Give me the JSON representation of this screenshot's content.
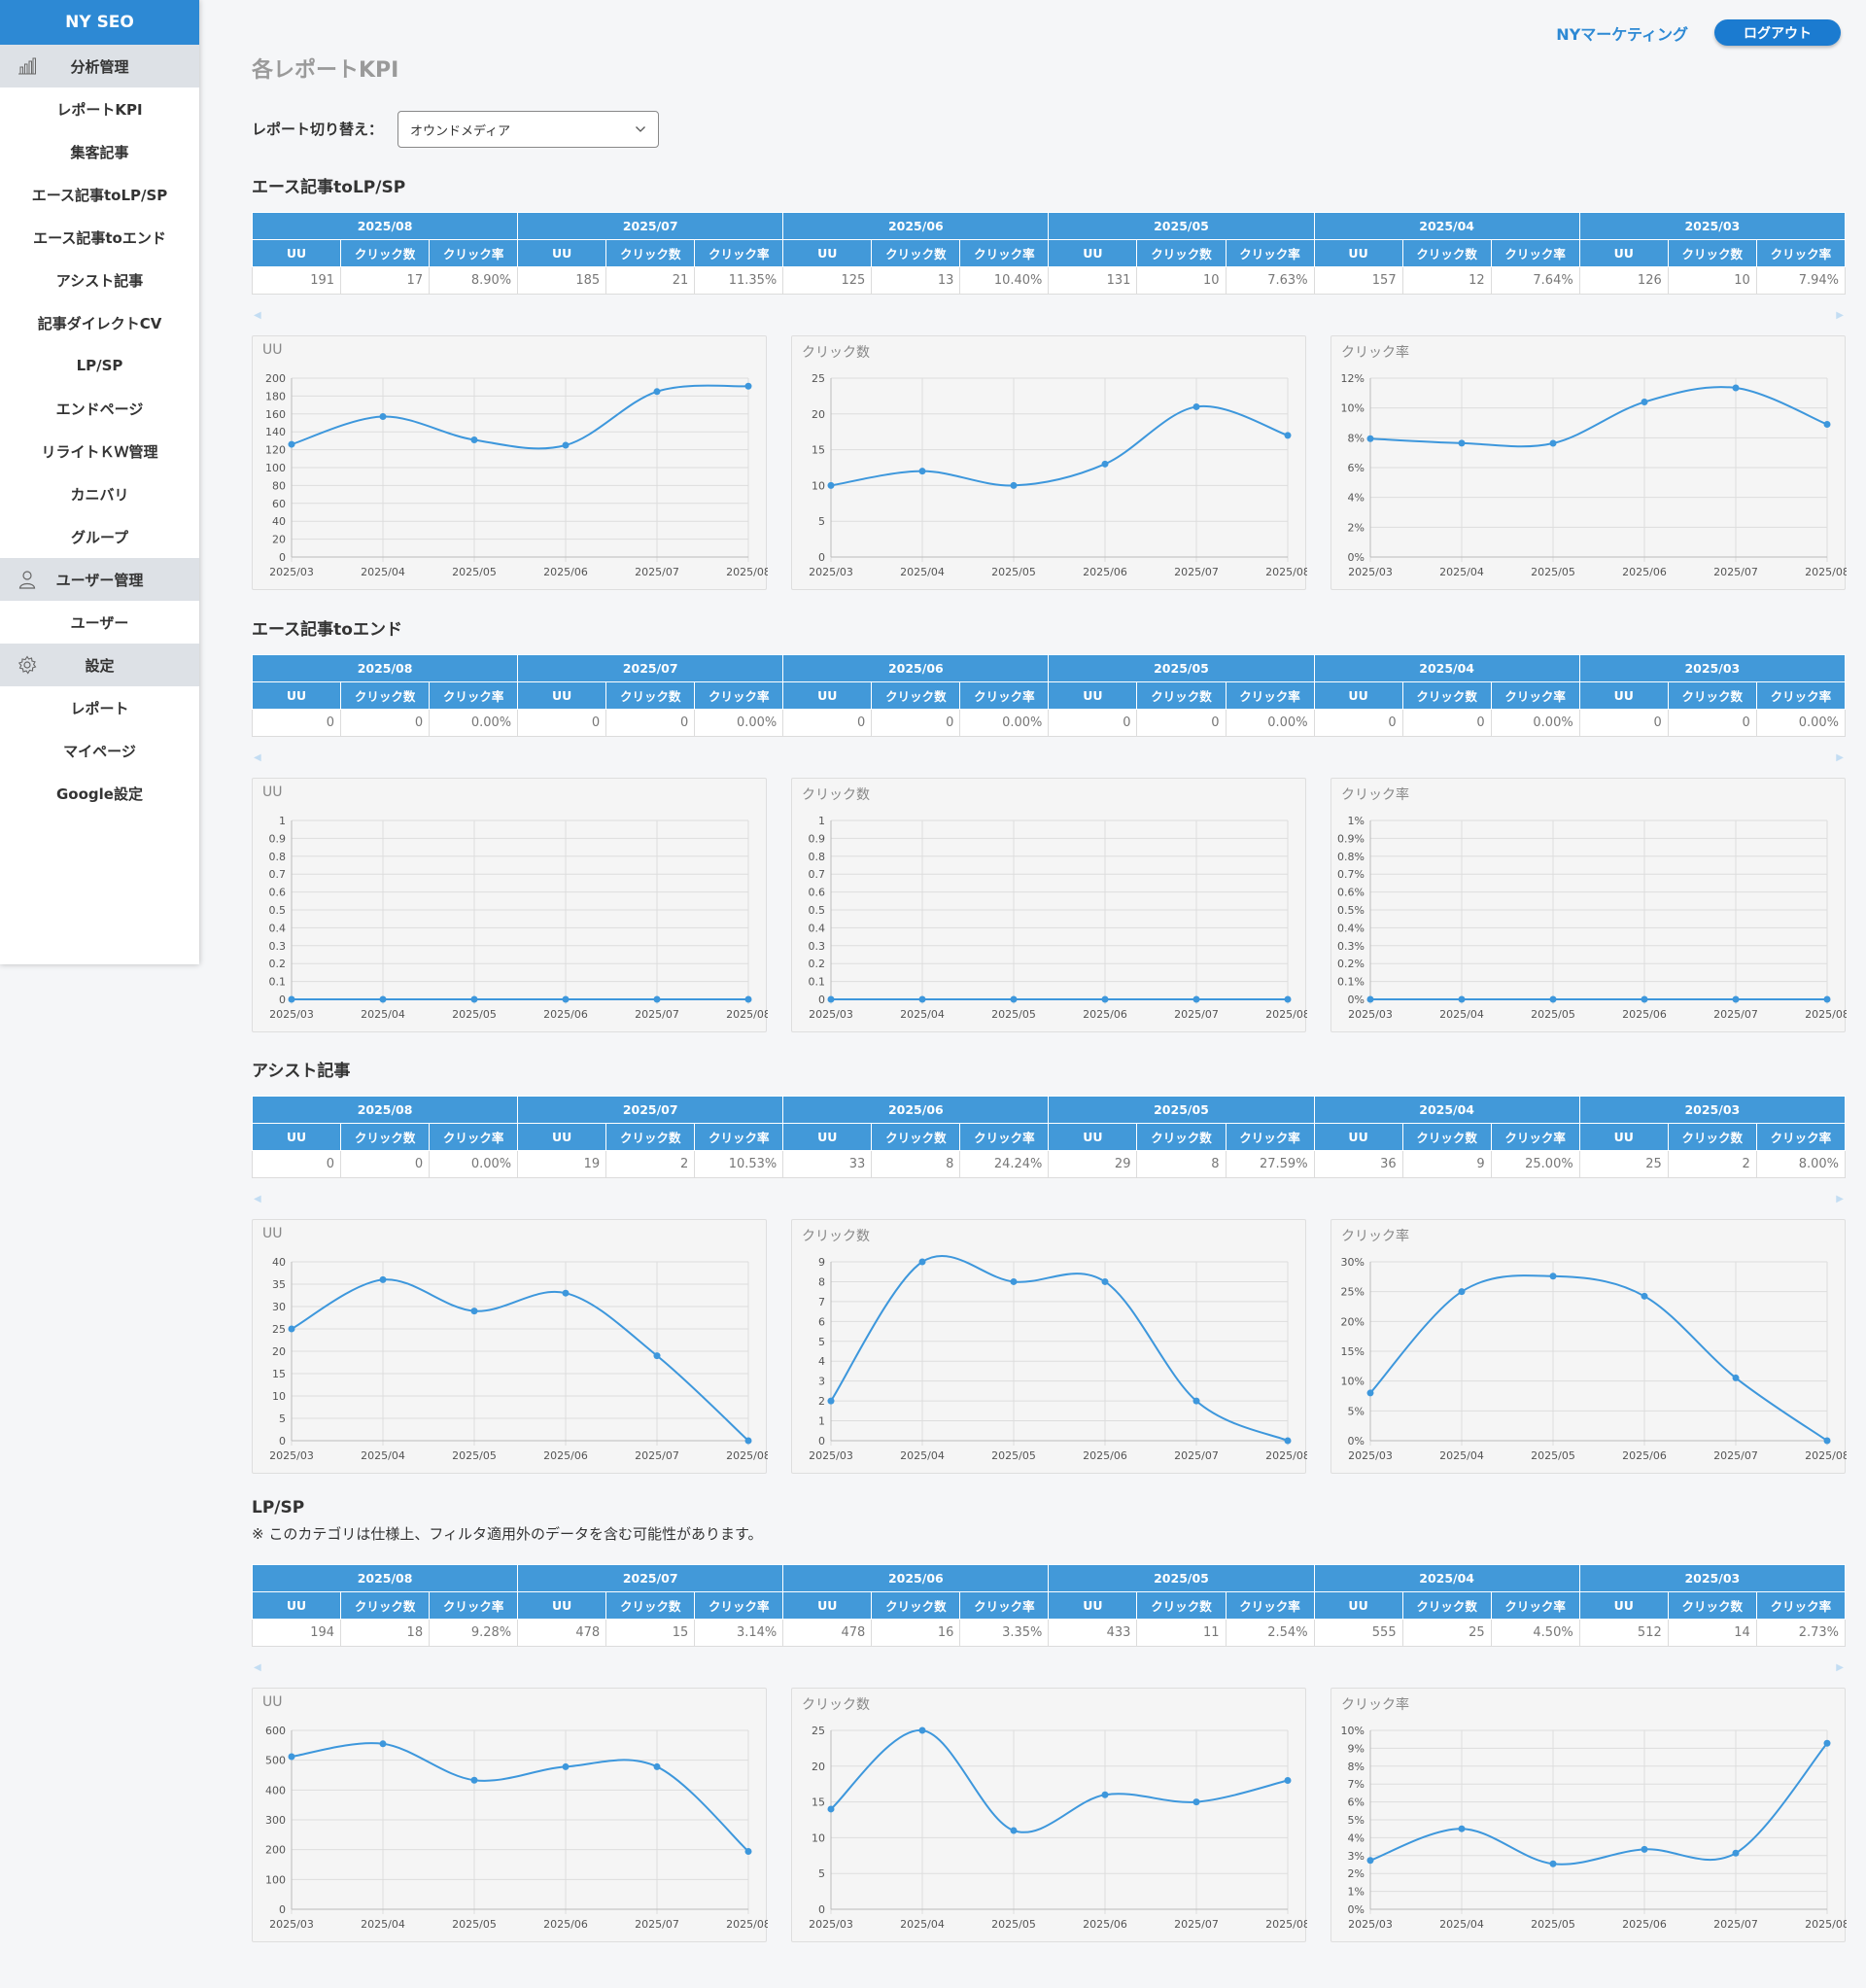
{
  "brand": "NY SEO",
  "sidebar": {
    "sections": [
      {
        "label": "分析管理",
        "icon": "bar-chart-icon",
        "items": [
          "レポートKPI",
          "集客記事",
          "エース記事toLP/SP",
          "エース記事toエンド",
          "アシスト記事",
          "記事ダイレクトCV",
          "LP/SP",
          "エンドページ",
          "リライトＫＷ管理",
          "カニバリ",
          "グループ"
        ]
      },
      {
        "label": "ユーザー管理",
        "icon": "user-icon",
        "items": [
          "ユーザー"
        ]
      },
      {
        "label": "設定",
        "icon": "gear-icon",
        "items": [
          "レポート",
          "マイページ",
          "Google設定"
        ]
      }
    ]
  },
  "header": {
    "user": "NYマーケティング",
    "logout_label": "ログアウト"
  },
  "page": {
    "title": "各レポートKPI",
    "switch_label": "レポート切り替え：",
    "select_value": "オウンドメディア"
  },
  "table_months": [
    "2025/08",
    "2025/07",
    "2025/06",
    "2025/05",
    "2025/04",
    "2025/03"
  ],
  "table_columns": [
    "UU",
    "クリック数",
    "クリック率"
  ],
  "chart_titles": [
    "UU",
    "クリック数",
    "クリック率"
  ],
  "colors": {
    "accent": "#2d89d4",
    "header_bg": "#4299d9",
    "line": "#3d97dc"
  },
  "sections": [
    {
      "title": "エース記事toLP/SP",
      "note": "",
      "row": [
        [
          "191",
          "17",
          "8.90%"
        ],
        [
          "185",
          "21",
          "11.35%"
        ],
        [
          "125",
          "13",
          "10.40%"
        ],
        [
          "131",
          "10",
          "7.63%"
        ],
        [
          "157",
          "12",
          "7.64%"
        ],
        [
          "126",
          "10",
          "7.94%"
        ]
      ]
    },
    {
      "title": "エース記事toエンド",
      "note": "",
      "row": [
        [
          "0",
          "0",
          "0.00%"
        ],
        [
          "0",
          "0",
          "0.00%"
        ],
        [
          "0",
          "0",
          "0.00%"
        ],
        [
          "0",
          "0",
          "0.00%"
        ],
        [
          "0",
          "0",
          "0.00%"
        ],
        [
          "0",
          "0",
          "0.00%"
        ]
      ]
    },
    {
      "title": "アシスト記事",
      "note": "",
      "row": [
        [
          "0",
          "0",
          "0.00%"
        ],
        [
          "19",
          "2",
          "10.53%"
        ],
        [
          "33",
          "8",
          "24.24%"
        ],
        [
          "29",
          "8",
          "27.59%"
        ],
        [
          "36",
          "9",
          "25.00%"
        ],
        [
          "25",
          "2",
          "8.00%"
        ]
      ]
    },
    {
      "title": "LP/SP",
      "note": "※ このカテゴリは仕様上、フィルタ適用外のデータを含む可能性があります。",
      "row": [
        [
          "194",
          "18",
          "9.28%"
        ],
        [
          "478",
          "15",
          "3.14%"
        ],
        [
          "478",
          "16",
          "3.35%"
        ],
        [
          "433",
          "11",
          "2.54%"
        ],
        [
          "555",
          "25",
          "4.50%"
        ],
        [
          "512",
          "14",
          "2.73%"
        ]
      ]
    }
  ],
  "chart_data": [
    {
      "type": "line",
      "title": "UU",
      "categories": [
        "2025/03",
        "2025/04",
        "2025/05",
        "2025/06",
        "2025/07",
        "2025/08"
      ],
      "values": [
        126,
        157,
        131,
        125,
        185,
        191
      ],
      "ylim": [
        0,
        200
      ],
      "yticks": [
        0,
        20,
        40,
        60,
        80,
        100,
        120,
        140,
        160,
        180,
        200
      ],
      "unit": ""
    },
    {
      "type": "line",
      "title": "クリック数",
      "categories": [
        "2025/03",
        "2025/04",
        "2025/05",
        "2025/06",
        "2025/07",
        "2025/08"
      ],
      "values": [
        10,
        12,
        10,
        13,
        21,
        17
      ],
      "ylim": [
        0,
        25
      ],
      "yticks": [
        0,
        5,
        10,
        15,
        20,
        25
      ],
      "unit": ""
    },
    {
      "type": "line",
      "title": "クリック率",
      "categories": [
        "2025/03",
        "2025/04",
        "2025/05",
        "2025/06",
        "2025/07",
        "2025/08"
      ],
      "values": [
        7.94,
        7.64,
        7.63,
        10.4,
        11.35,
        8.9
      ],
      "ylim": [
        0,
        12
      ],
      "yticks": [
        0,
        2,
        4,
        6,
        8,
        10,
        12
      ],
      "unit": "%"
    },
    {
      "type": "line",
      "title": "UU",
      "categories": [
        "2025/03",
        "2025/04",
        "2025/05",
        "2025/06",
        "2025/07",
        "2025/08"
      ],
      "values": [
        0,
        0,
        0,
        0,
        0,
        0
      ],
      "ylim": [
        0,
        1
      ],
      "yticks": [
        0,
        0.1,
        0.2,
        0.3,
        0.4,
        0.5,
        0.6,
        0.7,
        0.8,
        0.9,
        1
      ],
      "unit": ""
    },
    {
      "type": "line",
      "title": "クリック数",
      "categories": [
        "2025/03",
        "2025/04",
        "2025/05",
        "2025/06",
        "2025/07",
        "2025/08"
      ],
      "values": [
        0,
        0,
        0,
        0,
        0,
        0
      ],
      "ylim": [
        0,
        1
      ],
      "yticks": [
        0,
        0.1,
        0.2,
        0.3,
        0.4,
        0.5,
        0.6,
        0.7,
        0.8,
        0.9,
        1
      ],
      "unit": ""
    },
    {
      "type": "line",
      "title": "クリック率",
      "categories": [
        "2025/03",
        "2025/04",
        "2025/05",
        "2025/06",
        "2025/07",
        "2025/08"
      ],
      "values": [
        0,
        0,
        0,
        0,
        0,
        0
      ],
      "ylim": [
        0,
        1
      ],
      "yticks": [
        0,
        0.1,
        0.2,
        0.3,
        0.4,
        0.5,
        0.6,
        0.7,
        0.8,
        0.9,
        1
      ],
      "unit": "%"
    },
    {
      "type": "line",
      "title": "UU",
      "categories": [
        "2025/03",
        "2025/04",
        "2025/05",
        "2025/06",
        "2025/07",
        "2025/08"
      ],
      "values": [
        25,
        36,
        29,
        33,
        19,
        0
      ],
      "ylim": [
        0,
        40
      ],
      "yticks": [
        0,
        5,
        10,
        15,
        20,
        25,
        30,
        35,
        40
      ],
      "unit": ""
    },
    {
      "type": "line",
      "title": "クリック数",
      "categories": [
        "2025/03",
        "2025/04",
        "2025/05",
        "2025/06",
        "2025/07",
        "2025/08"
      ],
      "values": [
        2,
        9,
        8,
        8,
        2,
        0
      ],
      "ylim": [
        0,
        9
      ],
      "yticks": [
        0,
        1,
        2,
        3,
        4,
        5,
        6,
        7,
        8,
        9
      ],
      "unit": ""
    },
    {
      "type": "line",
      "title": "クリック率",
      "categories": [
        "2025/03",
        "2025/04",
        "2025/05",
        "2025/06",
        "2025/07",
        "2025/08"
      ],
      "values": [
        8.0,
        25.0,
        27.59,
        24.24,
        10.53,
        0
      ],
      "ylim": [
        0,
        30
      ],
      "yticks": [
        0,
        5,
        10,
        15,
        20,
        25,
        30
      ],
      "unit": "%"
    },
    {
      "type": "line",
      "title": "UU",
      "categories": [
        "2025/03",
        "2025/04",
        "2025/05",
        "2025/06",
        "2025/07",
        "2025/08"
      ],
      "values": [
        512,
        555,
        433,
        478,
        478,
        194
      ],
      "ylim": [
        0,
        600
      ],
      "yticks": [
        0,
        100,
        200,
        300,
        400,
        500,
        600
      ],
      "unit": ""
    },
    {
      "type": "line",
      "title": "クリック数",
      "categories": [
        "2025/03",
        "2025/04",
        "2025/05",
        "2025/06",
        "2025/07",
        "2025/08"
      ],
      "values": [
        14,
        25,
        11,
        16,
        15,
        18
      ],
      "ylim": [
        0,
        25
      ],
      "yticks": [
        0,
        5,
        10,
        15,
        20,
        25
      ],
      "unit": ""
    },
    {
      "type": "line",
      "title": "クリック率",
      "categories": [
        "2025/03",
        "2025/04",
        "2025/05",
        "2025/06",
        "2025/07",
        "2025/08"
      ],
      "values": [
        2.73,
        4.5,
        2.54,
        3.35,
        3.14,
        9.28
      ],
      "ylim": [
        0,
        10
      ],
      "yticks": [
        0,
        1,
        2,
        3,
        4,
        5,
        6,
        7,
        8,
        9,
        10
      ],
      "unit": "%"
    }
  ]
}
